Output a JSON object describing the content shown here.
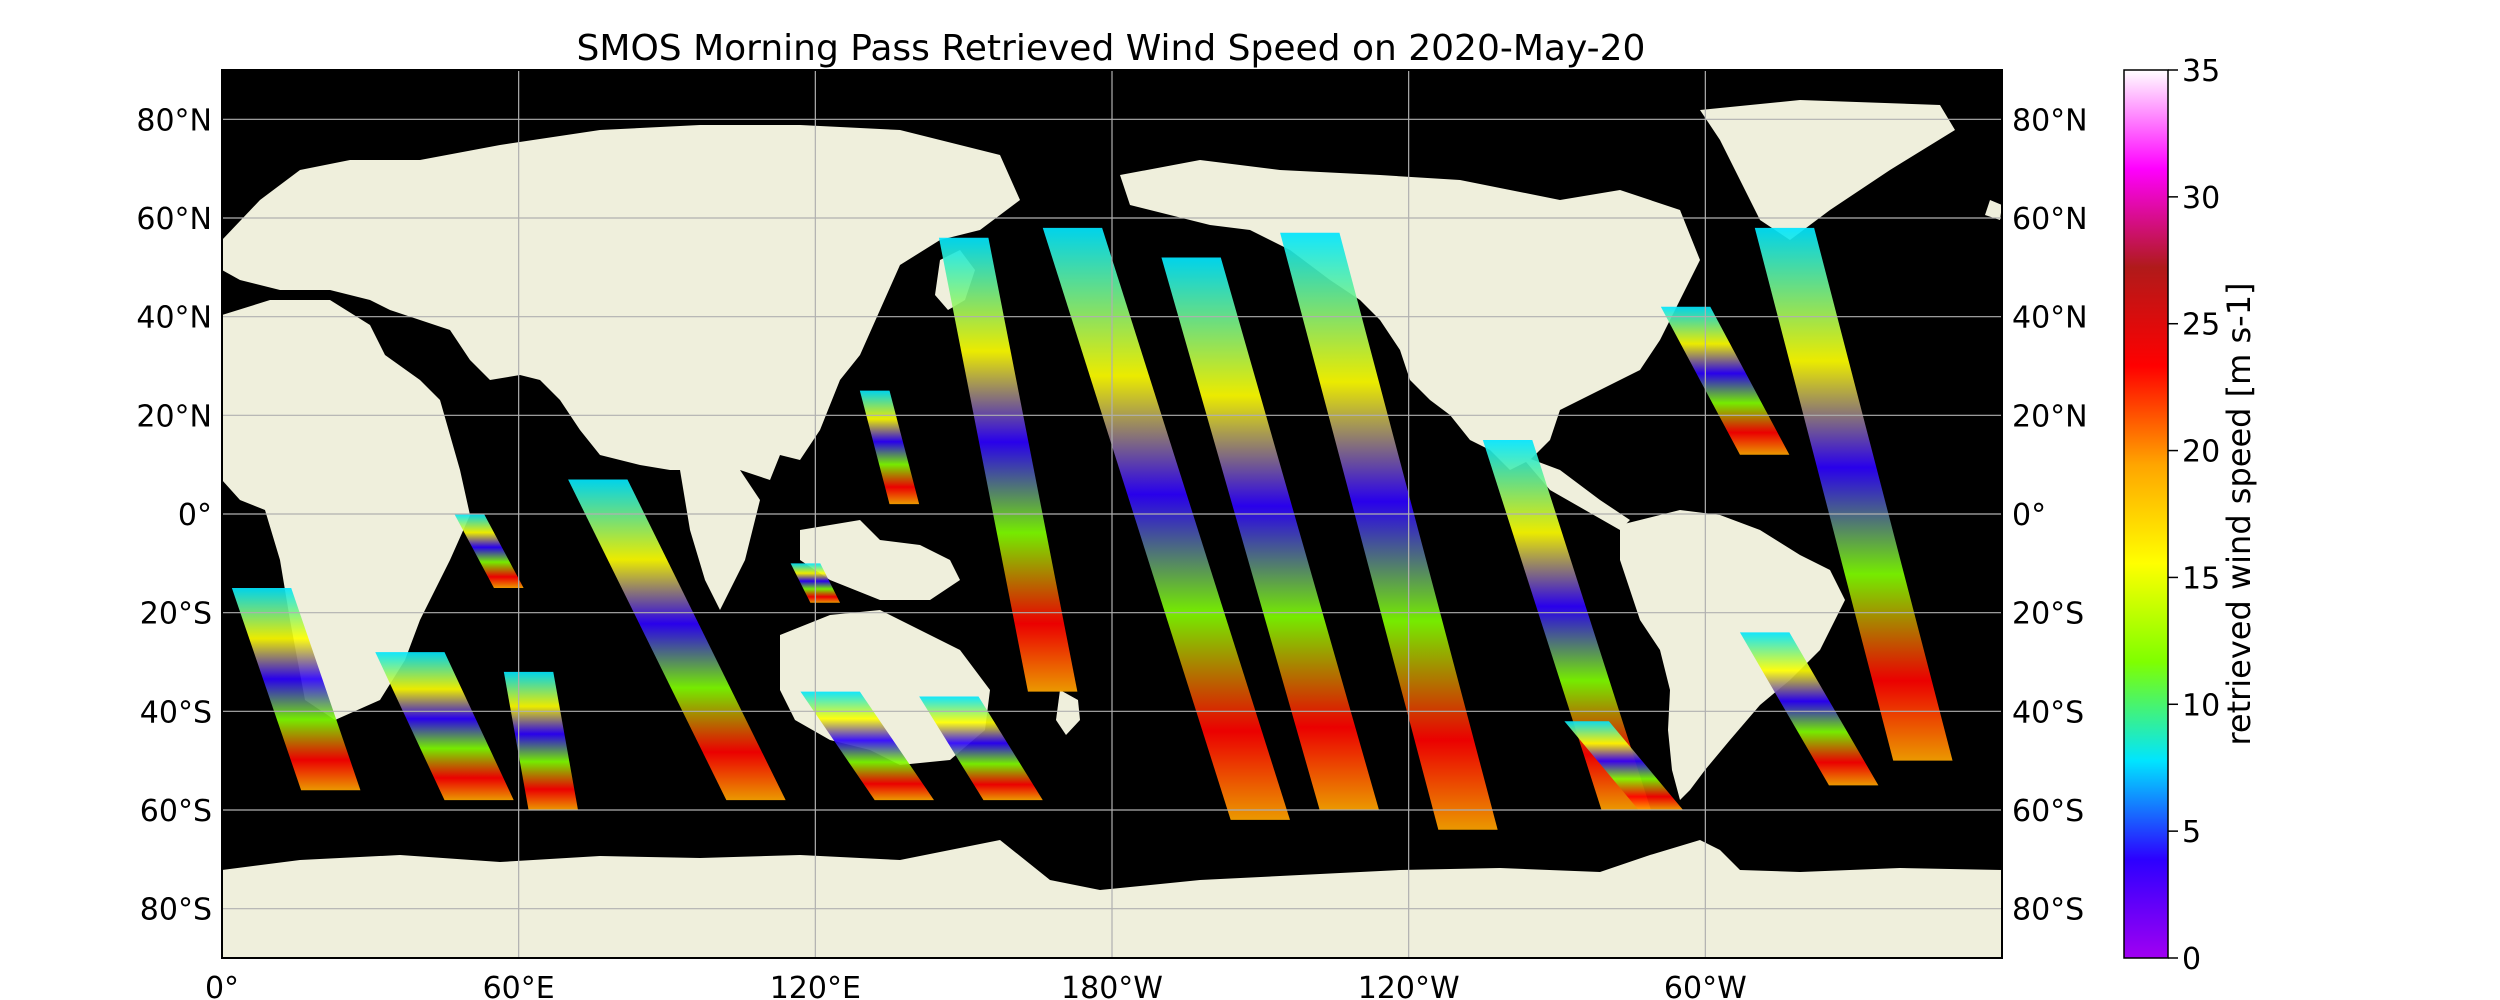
{
  "title": "SMOS Morning Pass Retrieved Wind Speed on 2020-May-20",
  "map": {
    "projection": "equirectangular",
    "lon_range": [
      0,
      360
    ],
    "lat_range": [
      -90,
      90
    ],
    "grid": true,
    "lat_labels": [
      "80°N",
      "60°N",
      "40°N",
      "20°N",
      "0°",
      "20°S",
      "40°S",
      "60°S",
      "80°S"
    ],
    "lat_values": [
      80,
      60,
      40,
      20,
      0,
      -20,
      -40,
      -60,
      -80
    ],
    "lon_labels": [
      "0°",
      "60°E",
      "120°E",
      "180°W",
      "120°W",
      "60°W"
    ],
    "lon_values": [
      0,
      60,
      120,
      180,
      240,
      300
    ],
    "land_color": "#efefdc",
    "ocean_color": "#000000"
  },
  "colorbar": {
    "label": "retrieved wind speed [m s-1]",
    "min": 0,
    "max": 35,
    "tick_values": [
      0,
      5,
      10,
      15,
      20,
      25,
      30,
      35
    ],
    "tick_labels": [
      "0",
      "5",
      "10",
      "15",
      "20",
      "25",
      "30",
      "35"
    ],
    "colormap": [
      "#a100f2",
      "#2c00ff",
      "#00e5ff",
      "#7fff00",
      "#ffff00",
      "#ffa500",
      "#ff0000",
      "#b01a1a",
      "#ff00ff",
      "#ffffff"
    ]
  },
  "swaths": [
    {
      "start": [
        8,
        -15
      ],
      "end": [
        22,
        -56
      ],
      "width_deg": 12
    },
    {
      "start": [
        38,
        -28
      ],
      "end": [
        52,
        -58
      ],
      "width_deg": 14
    },
    {
      "start": [
        50,
        0
      ],
      "end": [
        58,
        -15
      ],
      "width_deg": 6
    },
    {
      "start": [
        62,
        -32
      ],
      "end": [
        67,
        -60
      ],
      "width_deg": 10
    },
    {
      "start": [
        76,
        7
      ],
      "end": [
        108,
        -58
      ],
      "width_deg": 12
    },
    {
      "start": [
        118,
        -10
      ],
      "end": [
        122,
        -18
      ],
      "width_deg": 6
    },
    {
      "start": [
        123,
        -36
      ],
      "end": [
        138,
        -58
      ],
      "width_deg": 12
    },
    {
      "start": [
        132,
        25
      ],
      "end": [
        138,
        2
      ],
      "width_deg": 6
    },
    {
      "start": [
        147,
        -37
      ],
      "end": [
        160,
        -58
      ],
      "width_deg": 12
    },
    {
      "start": [
        150,
        56
      ],
      "end": [
        168,
        -36
      ],
      "width_deg": 10
    },
    {
      "start": [
        172,
        58
      ],
      "end": [
        210,
        -62
      ],
      "width_deg": 12
    },
    {
      "start": [
        196,
        52
      ],
      "end": [
        228,
        -60
      ],
      "width_deg": 12
    },
    {
      "start": [
        220,
        57
      ],
      "end": [
        252,
        -64
      ],
      "width_deg": 12
    },
    {
      "start": [
        260,
        15
      ],
      "end": [
        284,
        -60
      ],
      "width_deg": 10
    },
    {
      "start": [
        276,
        -42
      ],
      "end": [
        291,
        -60
      ],
      "width_deg": 9
    },
    {
      "start": [
        296,
        42
      ],
      "end": [
        312,
        12
      ],
      "width_deg": 10
    },
    {
      "start": [
        316,
        58
      ],
      "end": [
        344,
        -50
      ],
      "width_deg": 12
    },
    {
      "start": [
        312,
        -24
      ],
      "end": [
        330,
        -55
      ],
      "width_deg": 10
    }
  ]
}
